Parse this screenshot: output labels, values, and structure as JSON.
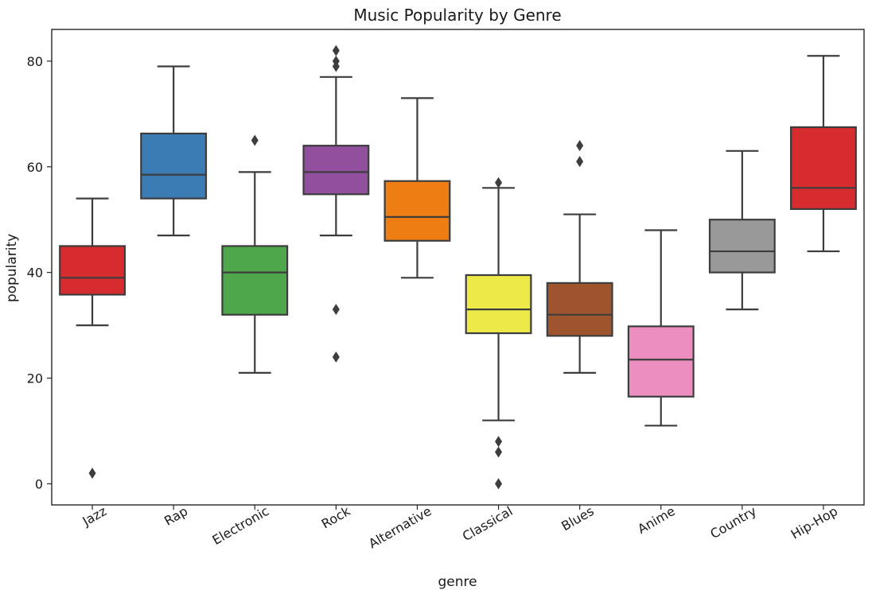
{
  "chart_data": {
    "type": "box",
    "title": "Music Popularity by Genre",
    "xlabel": "genre",
    "ylabel": "popularity",
    "ylim": [
      -4,
      86
    ],
    "yticks": [
      0,
      20,
      40,
      60,
      80
    ],
    "grid": false,
    "legend": "none",
    "categories": [
      "Jazz",
      "Rap",
      "Electronic",
      "Rock",
      "Alternative",
      "Classical",
      "Blues",
      "Anime",
      "Country",
      "Hip-Hop"
    ],
    "boxes": [
      {
        "category": "Jazz",
        "whisker_low": 30,
        "q1": 35.8,
        "median": 39,
        "q3": 45,
        "whisker_high": 54,
        "outliers": [
          2
        ],
        "color": "#d62b2f"
      },
      {
        "category": "Rap",
        "whisker_low": 47,
        "q1": 54,
        "median": 58.5,
        "q3": 66.3,
        "whisker_high": 79,
        "outliers": [],
        "color": "#3c7cb4"
      },
      {
        "category": "Electronic",
        "whisker_low": 21,
        "q1": 32,
        "median": 40,
        "q3": 45,
        "whisker_high": 59,
        "outliers": [
          65
        ],
        "color": "#4ea84b"
      },
      {
        "category": "Rock",
        "whisker_low": 47,
        "q1": 54.8,
        "median": 59,
        "q3": 64,
        "whisker_high": 77,
        "outliers": [
          24,
          33,
          79,
          80,
          82
        ],
        "color": "#924f9e"
      },
      {
        "category": "Alternative",
        "whisker_low": 39,
        "q1": 46,
        "median": 50.5,
        "q3": 57.3,
        "whisker_high": 73,
        "outliers": [],
        "color": "#ee7d13"
      },
      {
        "category": "Classical",
        "whisker_low": 12,
        "q1": 28.5,
        "median": 33,
        "q3": 39.5,
        "whisker_high": 56,
        "outliers": [
          0,
          6,
          8,
          57
        ],
        "color": "#ece948"
      },
      {
        "category": "Blues",
        "whisker_low": 21,
        "q1": 28,
        "median": 32,
        "q3": 38,
        "whisker_high": 51,
        "outliers": [
          61,
          64
        ],
        "color": "#9e552e"
      },
      {
        "category": "Anime",
        "whisker_low": 11,
        "q1": 16.5,
        "median": 23.5,
        "q3": 29.8,
        "whisker_high": 48,
        "outliers": [],
        "color": "#ec8fc0"
      },
      {
        "category": "Country",
        "whisker_low": 33,
        "q1": 40,
        "median": 44,
        "q3": 50,
        "whisker_high": 63,
        "outliers": [],
        "color": "#999999"
      },
      {
        "category": "Hip-Hop",
        "whisker_low": 44,
        "q1": 52,
        "median": 56,
        "q3": 67.5,
        "whisker_high": 81,
        "outliers": [],
        "color": "#d62b2f"
      }
    ]
  }
}
